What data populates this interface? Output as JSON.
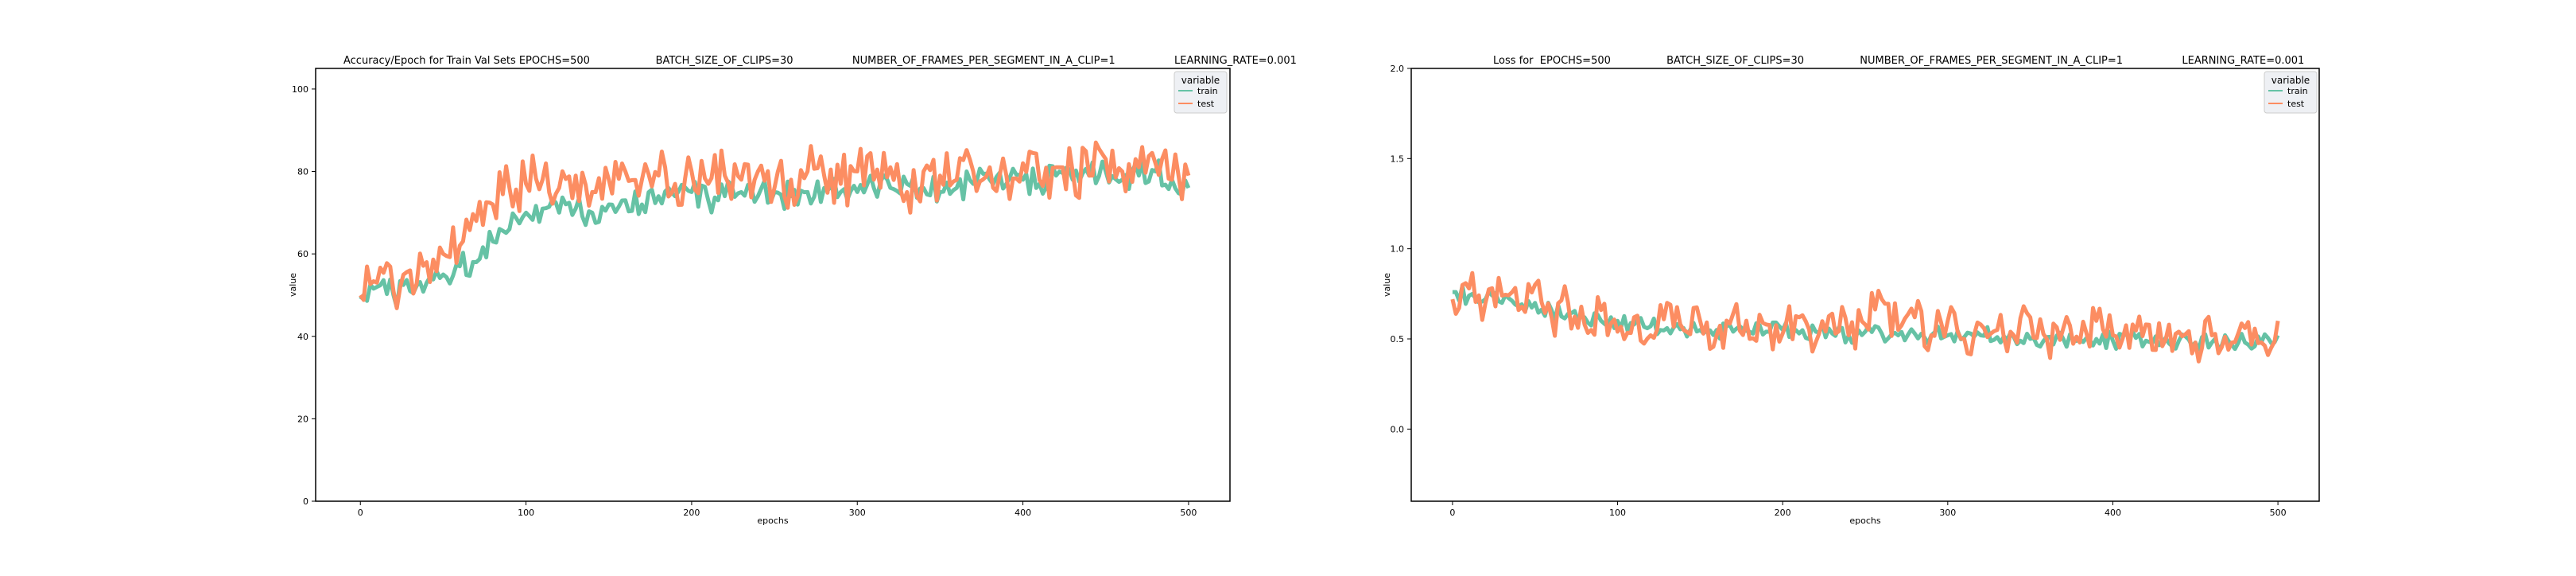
{
  "figure": {
    "charts": [
      {
        "title": "Accuracy/Epoch for Train Val Sets EPOCHS=500                    BATCH_SIZE_OF_CLIPS=30                  NUMBER_OF_FRAMES_PER_SEGMENT_IN_A_CLIP=1                  LEARNING_RATE=0.001",
        "xlabel": "epochs",
        "ylabel": "value",
        "legend_title": "variable"
      },
      {
        "title": "Loss for  EPOCHS=500                 BATCH_SIZE_OF_CLIPS=30                 NUMBER_OF_FRAMES_PER_SEGMENT_IN_A_CLIP=1                  LEARNING_RATE=0.001",
        "xlabel": "epochs",
        "ylabel": "value",
        "legend_title": "variable"
      }
    ]
  },
  "chart_data": [
    {
      "type": "line",
      "title": "Accuracy/Epoch for Train Val Sets EPOCHS=500                    BATCH_SIZE_OF_CLIPS=30                  NUMBER_OF_FRAMES_PER_SEGMENT_IN_A_CLIP=1                  LEARNING_RATE=0.001",
      "xlabel": "epochs",
      "ylabel": "value",
      "xlim": [
        -27,
        525
      ],
      "ylim": [
        0,
        105
      ],
      "xticks": [
        0,
        100,
        200,
        300,
        400,
        500
      ],
      "yticks": [
        0,
        20,
        40,
        60,
        80,
        100
      ],
      "grid": false,
      "legend": {
        "title": "variable",
        "placement": "top-right"
      },
      "x_step": 10,
      "series": [
        {
          "name": "train",
          "color": "#66c2a5",
          "x": [
            0,
            10,
            20,
            30,
            40,
            50,
            60,
            70,
            80,
            90,
            100,
            110,
            120,
            130,
            140,
            150,
            160,
            170,
            180,
            190,
            200,
            210,
            220,
            230,
            240,
            250,
            260,
            270,
            280,
            290,
            300,
            310,
            320,
            330,
            340,
            350,
            360,
            370,
            380,
            390,
            400,
            410,
            420,
            430,
            440,
            450,
            460,
            470,
            480,
            490,
            500
          ],
          "values": [
            49,
            52,
            50,
            51,
            53,
            55,
            57,
            58,
            63,
            66,
            70,
            71,
            70,
            71,
            70,
            72,
            73,
            72,
            74,
            74,
            75,
            73,
            74,
            75,
            74,
            75,
            74,
            75,
            76,
            75,
            75,
            76,
            76,
            77,
            76,
            75,
            76,
            77,
            78,
            77,
            78,
            77,
            79,
            78,
            79,
            80,
            78,
            79,
            80,
            78,
            76
          ]
        },
        {
          "name": "test",
          "color": "#fc8d62",
          "x": [
            0,
            10,
            20,
            30,
            40,
            50,
            60,
            70,
            80,
            90,
            100,
            110,
            120,
            130,
            140,
            150,
            160,
            170,
            180,
            190,
            200,
            210,
            220,
            230,
            240,
            250,
            260,
            270,
            280,
            290,
            300,
            310,
            320,
            330,
            340,
            350,
            360,
            370,
            380,
            390,
            400,
            410,
            420,
            430,
            440,
            450,
            460,
            470,
            480,
            490,
            500
          ],
          "values": [
            50,
            53,
            51,
            56,
            58,
            60,
            62,
            68,
            72,
            76,
            77,
            78,
            76,
            79,
            75,
            78,
            80,
            78,
            79,
            77,
            80,
            77,
            79,
            78,
            80,
            76,
            78,
            80,
            79,
            77,
            80,
            78,
            81,
            75,
            80,
            79,
            78,
            80,
            81,
            79,
            82,
            78,
            81,
            80,
            79,
            83,
            80,
            81,
            82,
            78,
            79
          ]
        }
      ]
    },
    {
      "type": "line",
      "title": "Loss for  EPOCHS=500                 BATCH_SIZE_OF_CLIPS=30                 NUMBER_OF_FRAMES_PER_SEGMENT_IN_A_CLIP=1                  LEARNING_RATE=0.001",
      "xlabel": "epochs",
      "ylabel": "value",
      "xlim": [
        -25,
        525
      ],
      "ylim": [
        -0.4,
        2.0
      ],
      "xticks": [
        0,
        100,
        200,
        300,
        400,
        500
      ],
      "yticks": [
        0.0,
        0.5,
        1.0,
        1.5,
        2.0
      ],
      "grid": false,
      "legend": {
        "title": "variable",
        "placement": "top-right"
      },
      "x_step": 10,
      "series": [
        {
          "name": "train",
          "color": "#66c2a5",
          "x": [
            0,
            10,
            20,
            30,
            40,
            50,
            60,
            70,
            80,
            90,
            100,
            110,
            120,
            130,
            140,
            150,
            160,
            170,
            180,
            190,
            200,
            210,
            220,
            230,
            240,
            250,
            260,
            270,
            280,
            290,
            300,
            310,
            320,
            330,
            340,
            350,
            360,
            370,
            380,
            390,
            400,
            410,
            420,
            430,
            440,
            450,
            460,
            470,
            480,
            490,
            500
          ],
          "values": [
            0.76,
            0.74,
            0.72,
            0.7,
            0.68,
            0.7,
            0.66,
            0.64,
            0.62,
            0.6,
            0.6,
            0.58,
            0.57,
            0.56,
            0.56,
            0.55,
            0.55,
            0.54,
            0.54,
            0.54,
            0.55,
            0.53,
            0.54,
            0.53,
            0.52,
            0.54,
            0.53,
            0.52,
            0.53,
            0.52,
            0.52,
            0.51,
            0.52,
            0.51,
            0.51,
            0.5,
            0.51,
            0.5,
            0.5,
            0.5,
            0.49,
            0.5,
            0.49,
            0.48,
            0.49,
            0.48,
            0.48,
            0.49,
            0.48,
            0.48,
            0.52
          ]
        },
        {
          "name": "test",
          "color": "#fc8d62",
          "x": [
            0,
            10,
            20,
            30,
            40,
            50,
            60,
            70,
            80,
            90,
            100,
            110,
            120,
            130,
            140,
            150,
            160,
            170,
            180,
            190,
            200,
            210,
            220,
            230,
            240,
            250,
            260,
            270,
            280,
            290,
            300,
            310,
            320,
            330,
            340,
            350,
            360,
            370,
            380,
            390,
            400,
            410,
            420,
            430,
            440,
            450,
            460,
            470,
            480,
            490,
            500
          ],
          "values": [
            0.72,
            0.78,
            0.7,
            0.74,
            0.66,
            0.8,
            0.62,
            0.7,
            0.58,
            0.66,
            0.54,
            0.62,
            0.52,
            0.7,
            0.55,
            0.6,
            0.52,
            0.64,
            0.5,
            0.58,
            0.53,
            0.62,
            0.48,
            0.64,
            0.52,
            0.58,
            0.72,
            0.55,
            0.62,
            0.52,
            0.6,
            0.5,
            0.58,
            0.55,
            0.52,
            0.62,
            0.5,
            0.56,
            0.48,
            0.6,
            0.52,
            0.45,
            0.58,
            0.46,
            0.54,
            0.48,
            0.52,
            0.44,
            0.56,
            0.48,
            0.6
          ]
        }
      ]
    }
  ]
}
